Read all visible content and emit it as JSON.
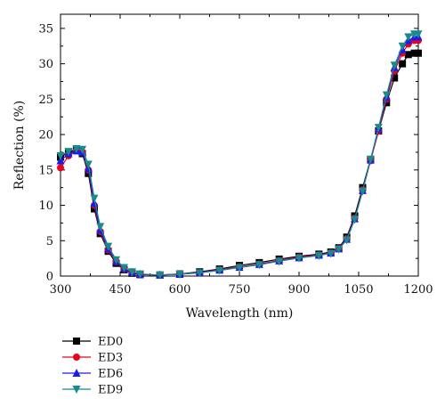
{
  "chart_data": {
    "type": "line",
    "xlabel": "Wavelength (nm)",
    "ylabel": "Reflection (%)",
    "xlim": [
      300,
      1200
    ],
    "ylim": [
      0,
      37
    ],
    "x_ticks": [
      300,
      450,
      600,
      750,
      900,
      1050,
      1200
    ],
    "y_ticks": [
      0,
      5,
      10,
      15,
      20,
      25,
      30,
      35
    ],
    "legend_placement": "bottom-left",
    "series": [
      {
        "name": "ED0",
        "color": "#000000",
        "marker": "square",
        "points": [
          [
            300,
            16.8
          ],
          [
            320,
            17.5
          ],
          [
            340,
            17.8
          ],
          [
            355,
            17.3
          ],
          [
            370,
            14.5
          ],
          [
            385,
            9.5
          ],
          [
            400,
            6.0
          ],
          [
            420,
            3.5
          ],
          [
            440,
            1.8
          ],
          [
            460,
            0.9
          ],
          [
            480,
            0.4
          ],
          [
            500,
            0.2
          ],
          [
            550,
            0.15
          ],
          [
            600,
            0.3
          ],
          [
            650,
            0.6
          ],
          [
            700,
            1.0
          ],
          [
            750,
            1.5
          ],
          [
            800,
            1.9
          ],
          [
            850,
            2.4
          ],
          [
            900,
            2.8
          ],
          [
            950,
            3.1
          ],
          [
            980,
            3.4
          ],
          [
            1000,
            4.0
          ],
          [
            1020,
            5.5
          ],
          [
            1040,
            8.5
          ],
          [
            1060,
            12.5
          ],
          [
            1080,
            16.5
          ],
          [
            1100,
            20.5
          ],
          [
            1120,
            24.5
          ],
          [
            1140,
            28.0
          ],
          [
            1160,
            30.0
          ],
          [
            1175,
            31.3
          ],
          [
            1190,
            31.5
          ],
          [
            1200,
            31.5
          ]
        ]
      },
      {
        "name": "ED3",
        "color": "#e8001c",
        "marker": "circle",
        "points": [
          [
            300,
            15.3
          ],
          [
            320,
            17.0
          ],
          [
            340,
            17.7
          ],
          [
            355,
            17.5
          ],
          [
            370,
            15.0
          ],
          [
            385,
            10.0
          ],
          [
            400,
            6.3
          ],
          [
            420,
            3.7
          ],
          [
            440,
            2.0
          ],
          [
            460,
            1.0
          ],
          [
            480,
            0.5
          ],
          [
            500,
            0.25
          ],
          [
            550,
            0.15
          ],
          [
            600,
            0.3
          ],
          [
            650,
            0.5
          ],
          [
            700,
            0.9
          ],
          [
            750,
            1.3
          ],
          [
            800,
            1.7
          ],
          [
            850,
            2.2
          ],
          [
            900,
            2.7
          ],
          [
            950,
            3.0
          ],
          [
            980,
            3.3
          ],
          [
            1000,
            3.9
          ],
          [
            1020,
            5.3
          ],
          [
            1040,
            8.2
          ],
          [
            1060,
            12.2
          ],
          [
            1080,
            16.3
          ],
          [
            1100,
            20.5
          ],
          [
            1120,
            25.0
          ],
          [
            1140,
            29.0
          ],
          [
            1160,
            31.5
          ],
          [
            1175,
            32.8
          ],
          [
            1190,
            33.3
          ],
          [
            1200,
            33.3
          ]
        ]
      },
      {
        "name": "ED6",
        "color": "#1a1aee",
        "marker": "triangle-up",
        "points": [
          [
            300,
            16.3
          ],
          [
            320,
            17.3
          ],
          [
            340,
            17.7
          ],
          [
            355,
            17.5
          ],
          [
            370,
            15.2
          ],
          [
            385,
            10.3
          ],
          [
            400,
            6.5
          ],
          [
            420,
            3.9
          ],
          [
            440,
            2.1
          ],
          [
            460,
            1.1
          ],
          [
            480,
            0.55
          ],
          [
            500,
            0.25
          ],
          [
            550,
            0.15
          ],
          [
            600,
            0.25
          ],
          [
            650,
            0.5
          ],
          [
            700,
            0.85
          ],
          [
            750,
            1.25
          ],
          [
            800,
            1.65
          ],
          [
            850,
            2.15
          ],
          [
            900,
            2.6
          ],
          [
            950,
            2.95
          ],
          [
            980,
            3.25
          ],
          [
            1000,
            3.85
          ],
          [
            1020,
            5.2
          ],
          [
            1040,
            8.1
          ],
          [
            1060,
            12.1
          ],
          [
            1080,
            16.4
          ],
          [
            1100,
            20.8
          ],
          [
            1120,
            25.3
          ],
          [
            1140,
            29.5
          ],
          [
            1160,
            32.0
          ],
          [
            1175,
            33.3
          ],
          [
            1190,
            33.8
          ],
          [
            1200,
            33.8
          ]
        ]
      },
      {
        "name": "ED9",
        "color": "#1a8a8a",
        "marker": "triangle-down",
        "points": [
          [
            300,
            17.0
          ],
          [
            320,
            17.6
          ],
          [
            340,
            18.0
          ],
          [
            355,
            17.9
          ],
          [
            370,
            15.8
          ],
          [
            385,
            11.0
          ],
          [
            400,
            7.0
          ],
          [
            420,
            4.2
          ],
          [
            440,
            2.3
          ],
          [
            460,
            1.2
          ],
          [
            480,
            0.6
          ],
          [
            500,
            0.3
          ],
          [
            550,
            0.15
          ],
          [
            600,
            0.25
          ],
          [
            650,
            0.45
          ],
          [
            700,
            0.8
          ],
          [
            750,
            1.2
          ],
          [
            800,
            1.6
          ],
          [
            850,
            2.1
          ],
          [
            900,
            2.55
          ],
          [
            950,
            2.9
          ],
          [
            980,
            3.2
          ],
          [
            1000,
            3.8
          ],
          [
            1020,
            5.1
          ],
          [
            1040,
            8.0
          ],
          [
            1060,
            12.0
          ],
          [
            1080,
            16.5
          ],
          [
            1100,
            21.0
          ],
          [
            1120,
            25.6
          ],
          [
            1140,
            29.8
          ],
          [
            1160,
            32.5
          ],
          [
            1175,
            33.8
          ],
          [
            1190,
            34.2
          ],
          [
            1200,
            34.2
          ]
        ]
      }
    ]
  }
}
